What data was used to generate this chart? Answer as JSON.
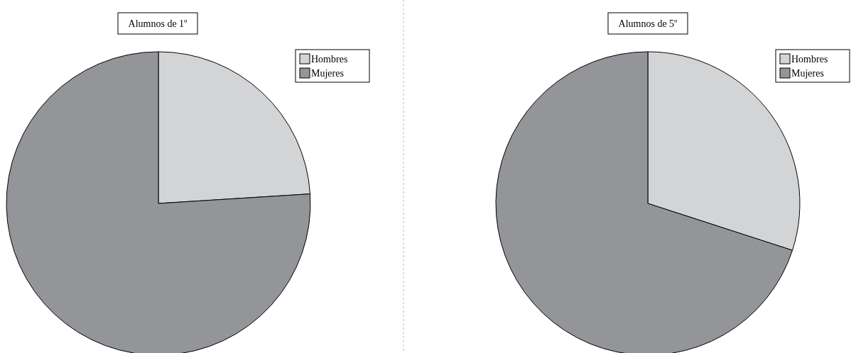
{
  "chart_data": [
    {
      "type": "pie",
      "title": "Alumnos de 1º",
      "categories": [
        "Hombres",
        "Mujeres"
      ],
      "values": [
        24,
        76
      ],
      "colors": [
        "#d3d4d6",
        "#939598"
      ],
      "legend": "top right"
    },
    {
      "type": "pie",
      "title": "Alumnos de 5º",
      "categories": [
        "Hombres",
        "Mujeres"
      ],
      "values": [
        30,
        70
      ],
      "colors": [
        "#d3d4d6",
        "#939598"
      ],
      "legend": "top right"
    }
  ]
}
